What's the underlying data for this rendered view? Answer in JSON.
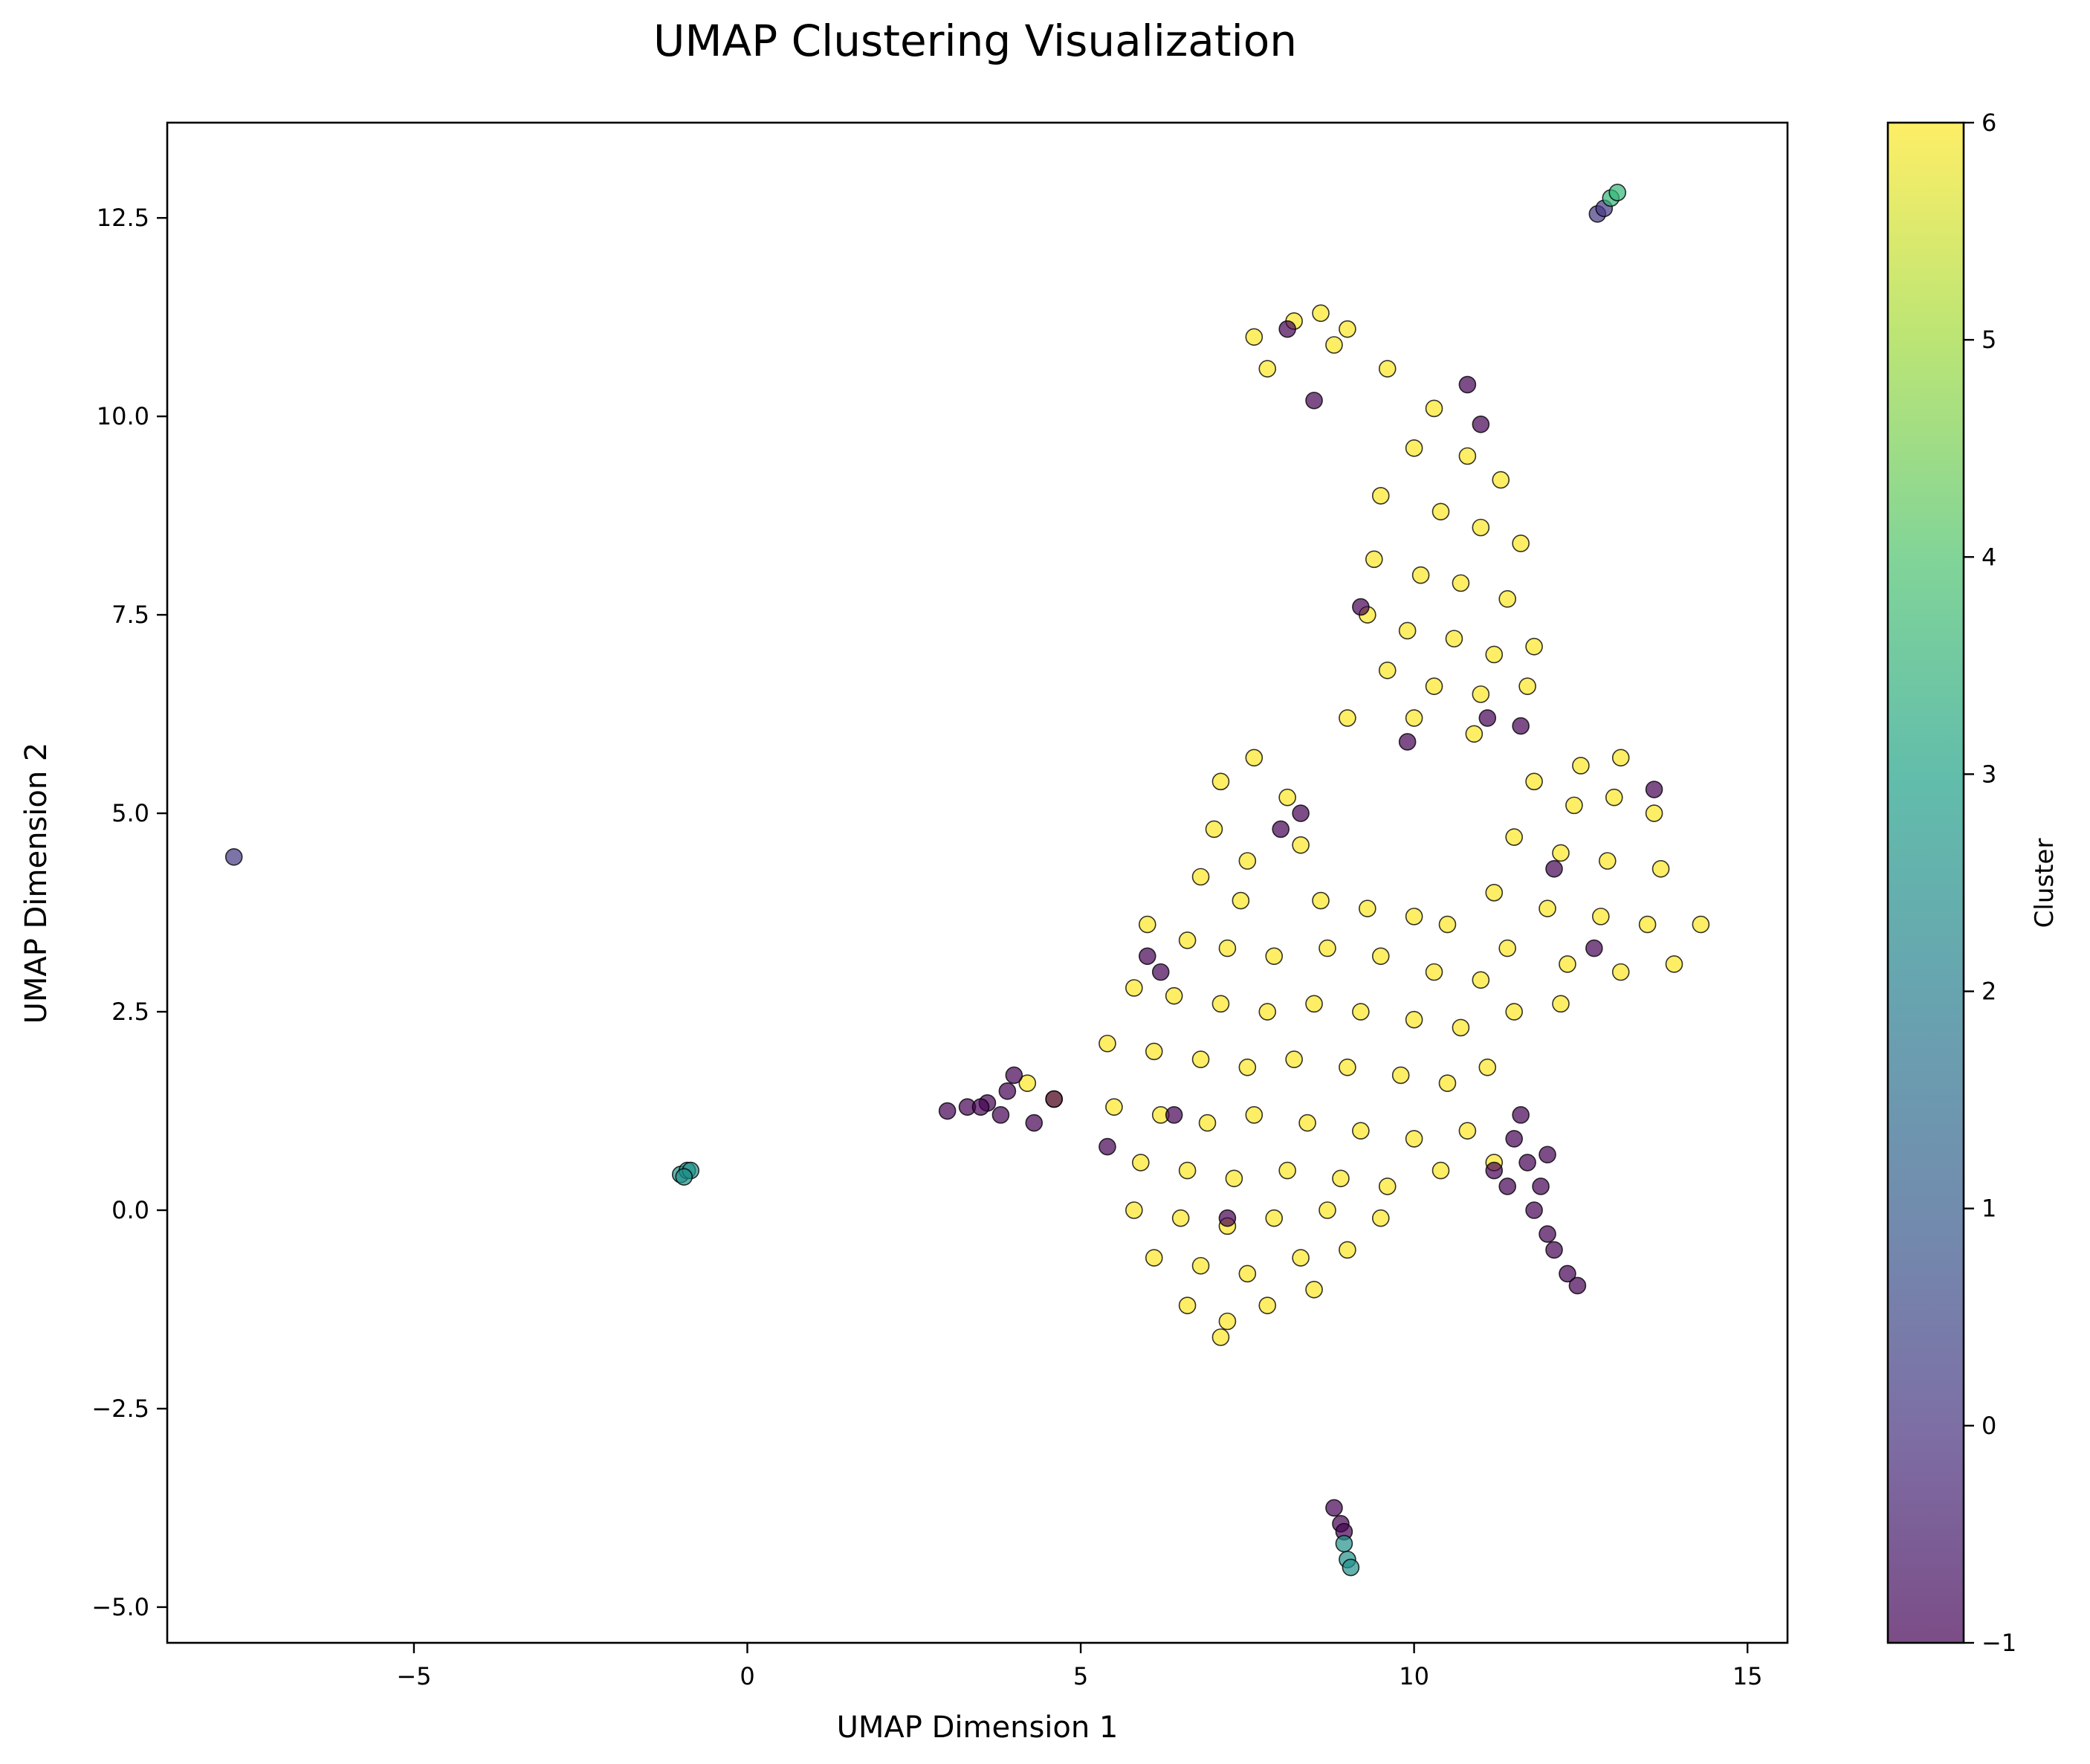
{
  "chart_data": {
    "type": "scatter",
    "title": "UMAP Clustering Visualization",
    "xlabel": "UMAP Dimension 1",
    "ylabel": "UMAP Dimension 2",
    "xlim": [
      -8.7,
      15.6
    ],
    "ylim": [
      -5.45,
      13.7
    ],
    "xticks": [
      -5,
      0,
      5,
      10,
      15
    ],
    "xtick_labels": [
      "−5",
      "0",
      "5",
      "10",
      "15"
    ],
    "yticks": [
      -5.0,
      -2.5,
      0.0,
      2.5,
      5.0,
      7.5,
      10.0,
      12.5
    ],
    "ytick_labels": [
      "−5.0",
      "−2.5",
      "0.0",
      "2.5",
      "5.0",
      "7.5",
      "10.0",
      "12.5"
    ],
    "grid": false,
    "colorbar": {
      "label": "Cluster",
      "min": -1,
      "max": 6,
      "ticks": [
        -1,
        0,
        1,
        2,
        3,
        4,
        5,
        6
      ],
      "tick_labels": [
        "−1",
        "0",
        "1",
        "2",
        "3",
        "4",
        "5",
        "6"
      ],
      "colormap": "viridis",
      "alpha": 0.7
    },
    "colors": {
      "cluster_-1": "#440154",
      "cluster_0": "#443983",
      "cluster_1": "#31688e",
      "cluster_2": "#21918c",
      "cluster_3": "#35b779",
      "cluster_4": "#90d743",
      "cluster_5": "#c8e020",
      "cluster_6": "#fde725",
      "edge": "#000000"
    },
    "series": [
      {
        "cluster": 6,
        "points": [
          [
            8.2,
            11.2
          ],
          [
            7.6,
            11.0
          ],
          [
            8.6,
            11.3
          ],
          [
            9.0,
            11.1
          ],
          [
            7.8,
            10.6
          ],
          [
            8.8,
            10.9
          ],
          [
            9.6,
            10.6
          ],
          [
            10.3,
            10.1
          ],
          [
            10.0,
            9.6
          ],
          [
            10.8,
            9.5
          ],
          [
            11.3,
            9.2
          ],
          [
            9.5,
            9.0
          ],
          [
            10.4,
            8.8
          ],
          [
            11.0,
            8.6
          ],
          [
            11.6,
            8.4
          ],
          [
            9.4,
            8.2
          ],
          [
            10.1,
            8.0
          ],
          [
            10.7,
            7.9
          ],
          [
            11.4,
            7.7
          ],
          [
            9.3,
            7.5
          ],
          [
            9.9,
            7.3
          ],
          [
            10.6,
            7.2
          ],
          [
            11.2,
            7.0
          ],
          [
            11.8,
            7.1
          ],
          [
            9.6,
            6.8
          ],
          [
            10.3,
            6.6
          ],
          [
            11.0,
            6.5
          ],
          [
            11.7,
            6.6
          ],
          [
            9.0,
            6.2
          ],
          [
            10.0,
            6.2
          ],
          [
            10.9,
            6.0
          ],
          [
            12.5,
            5.6
          ],
          [
            13.1,
            5.7
          ],
          [
            11.8,
            5.4
          ],
          [
            12.4,
            5.1
          ],
          [
            13.0,
            5.2
          ],
          [
            13.6,
            5.0
          ],
          [
            11.5,
            4.7
          ],
          [
            12.2,
            4.5
          ],
          [
            12.9,
            4.4
          ],
          [
            13.7,
            4.3
          ],
          [
            11.2,
            4.0
          ],
          [
            12.0,
            3.8
          ],
          [
            12.8,
            3.7
          ],
          [
            13.5,
            3.6
          ],
          [
            14.3,
            3.6
          ],
          [
            10.5,
            3.6
          ],
          [
            11.4,
            3.3
          ],
          [
            12.3,
            3.1
          ],
          [
            13.1,
            3.0
          ],
          [
            13.9,
            3.1
          ],
          [
            7.1,
            5.4
          ],
          [
            7.6,
            5.7
          ],
          [
            8.1,
            5.2
          ],
          [
            7.0,
            4.8
          ],
          [
            7.5,
            4.4
          ],
          [
            8.3,
            4.6
          ],
          [
            6.8,
            4.2
          ],
          [
            7.4,
            3.9
          ],
          [
            8.6,
            3.9
          ],
          [
            9.3,
            3.8
          ],
          [
            10.0,
            3.7
          ],
          [
            6.0,
            3.6
          ],
          [
            6.6,
            3.4
          ],
          [
            7.2,
            3.3
          ],
          [
            7.9,
            3.2
          ],
          [
            8.7,
            3.3
          ],
          [
            9.5,
            3.2
          ],
          [
            10.3,
            3.0
          ],
          [
            11.0,
            2.9
          ],
          [
            5.8,
            2.8
          ],
          [
            6.4,
            2.7
          ],
          [
            7.1,
            2.6
          ],
          [
            7.8,
            2.5
          ],
          [
            8.5,
            2.6
          ],
          [
            9.2,
            2.5
          ],
          [
            10.0,
            2.4
          ],
          [
            10.7,
            2.3
          ],
          [
            11.5,
            2.5
          ],
          [
            12.2,
            2.6
          ],
          [
            5.4,
            2.1
          ],
          [
            6.1,
            2.0
          ],
          [
            6.8,
            1.9
          ],
          [
            7.5,
            1.8
          ],
          [
            8.2,
            1.9
          ],
          [
            9.0,
            1.8
          ],
          [
            9.8,
            1.7
          ],
          [
            10.5,
            1.6
          ],
          [
            11.1,
            1.8
          ],
          [
            4.2,
            1.6
          ],
          [
            4.6,
            1.4
          ],
          [
            5.5,
            1.3
          ],
          [
            6.2,
            1.2
          ],
          [
            6.9,
            1.1
          ],
          [
            7.6,
            1.2
          ],
          [
            8.4,
            1.1
          ],
          [
            9.2,
            1.0
          ],
          [
            10.0,
            0.9
          ],
          [
            10.8,
            1.0
          ],
          [
            5.9,
            0.6
          ],
          [
            6.6,
            0.5
          ],
          [
            7.3,
            0.4
          ],
          [
            8.1,
            0.5
          ],
          [
            8.9,
            0.4
          ],
          [
            9.6,
            0.3
          ],
          [
            10.4,
            0.5
          ],
          [
            11.2,
            0.6
          ],
          [
            5.8,
            0.0
          ],
          [
            6.5,
            -0.1
          ],
          [
            7.2,
            -0.2
          ],
          [
            7.9,
            -0.1
          ],
          [
            8.7,
            0.0
          ],
          [
            9.5,
            -0.1
          ],
          [
            6.1,
            -0.6
          ],
          [
            6.8,
            -0.7
          ],
          [
            7.5,
            -0.8
          ],
          [
            8.3,
            -0.6
          ],
          [
            9.0,
            -0.5
          ],
          [
            6.6,
            -1.2
          ],
          [
            7.2,
            -1.4
          ],
          [
            7.8,
            -1.2
          ],
          [
            8.5,
            -1.0
          ],
          [
            7.1,
            -1.6
          ]
        ]
      },
      {
        "cluster": -1,
        "points": [
          [
            3.0,
            1.25
          ],
          [
            3.3,
            1.3
          ],
          [
            3.6,
            1.35
          ],
          [
            3.9,
            1.5
          ],
          [
            4.0,
            1.7
          ],
          [
            3.8,
            1.2
          ],
          [
            4.3,
            1.1
          ],
          [
            11.5,
            0.9
          ],
          [
            11.7,
            0.6
          ],
          [
            11.9,
            0.3
          ],
          [
            11.8,
            0.0
          ],
          [
            12.0,
            -0.3
          ],
          [
            12.1,
            -0.5
          ],
          [
            12.3,
            -0.8
          ],
          [
            12.45,
            -0.95
          ],
          [
            11.4,
            0.3
          ],
          [
            11.6,
            1.2
          ],
          [
            12.0,
            0.7
          ],
          [
            11.2,
            0.5
          ],
          [
            8.1,
            11.1
          ],
          [
            8.5,
            10.2
          ],
          [
            10.8,
            10.4
          ],
          [
            11.0,
            9.9
          ],
          [
            9.2,
            7.6
          ],
          [
            11.6,
            6.1
          ],
          [
            11.1,
            6.2
          ],
          [
            8.3,
            5.0
          ],
          [
            8.0,
            4.8
          ],
          [
            6.0,
            3.2
          ],
          [
            6.2,
            3.0
          ],
          [
            7.2,
            -0.1
          ],
          [
            6.4,
            1.2
          ],
          [
            9.9,
            5.9
          ],
          [
            13.6,
            5.3
          ],
          [
            12.1,
            4.3
          ],
          [
            12.7,
            3.3
          ],
          [
            8.8,
            -3.75
          ],
          [
            8.9,
            -3.95
          ],
          [
            8.95,
            -4.05
          ],
          [
            5.4,
            0.8
          ],
          [
            4.6,
            1.4
          ],
          [
            3.5,
            1.3
          ]
        ]
      },
      {
        "cluster": 0,
        "points": [
          [
            -7.7,
            4.45
          ],
          [
            12.75,
            12.55
          ],
          [
            12.85,
            12.62
          ]
        ]
      },
      {
        "cluster": 2,
        "points": [
          [
            -1.0,
            0.45
          ],
          [
            -0.9,
            0.5
          ],
          [
            -0.85,
            0.5
          ],
          [
            -0.95,
            0.42
          ],
          [
            9.0,
            -4.4
          ],
          [
            9.05,
            -4.5
          ],
          [
            8.95,
            -4.2
          ]
        ]
      },
      {
        "cluster": 3,
        "points": [
          [
            12.95,
            12.75
          ],
          [
            13.05,
            12.82
          ]
        ]
      }
    ]
  }
}
